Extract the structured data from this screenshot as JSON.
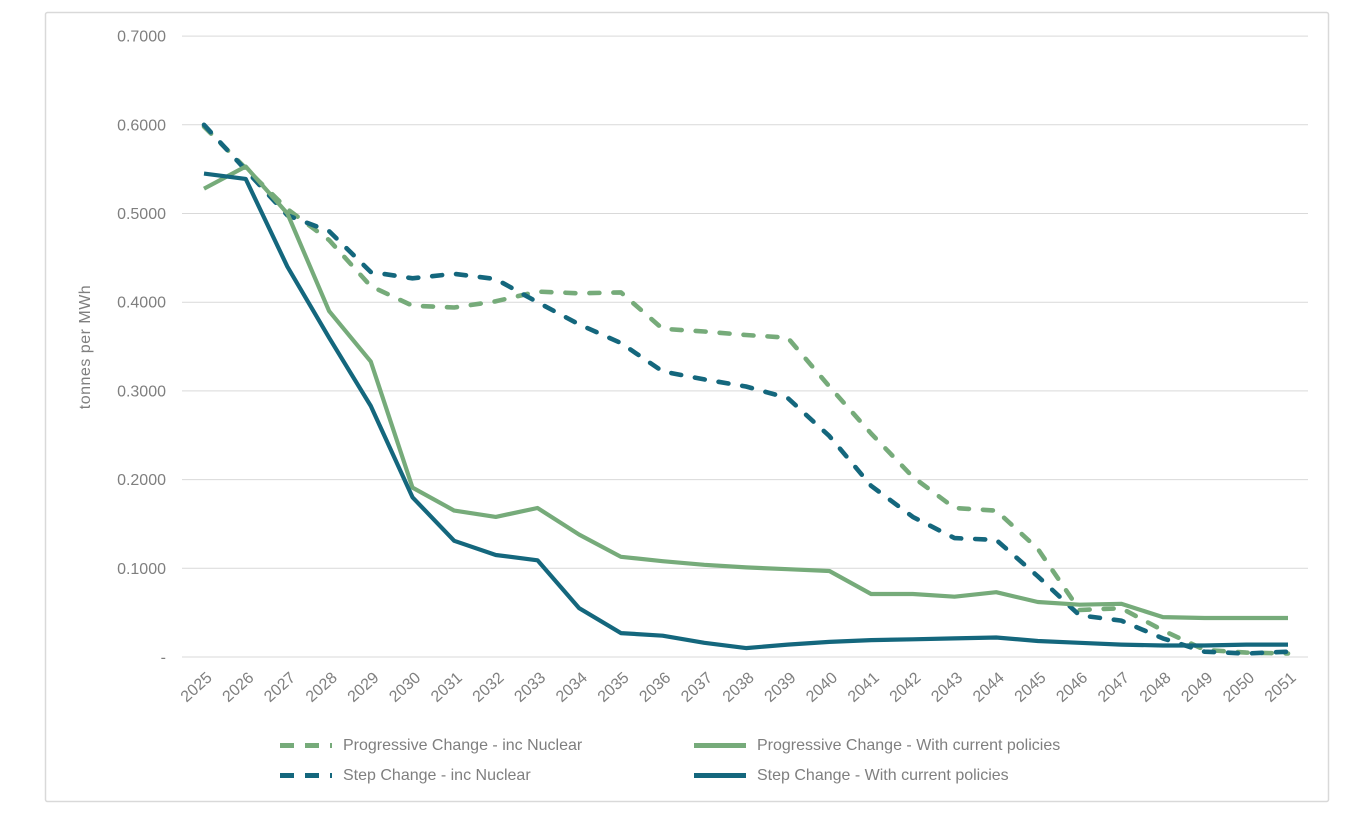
{
  "chart_data": {
    "type": "line",
    "title": "",
    "xlabel": "",
    "ylabel": "tonnes per MWh",
    "ylim": [
      0,
      0.7
    ],
    "grid": "horizontal",
    "legend_position": "bottom",
    "ytick_values": [
      0,
      0.1,
      0.2,
      0.3,
      0.4,
      0.5,
      0.6,
      0.7
    ],
    "ytick_labels": [
      "-",
      "0.1000",
      "0.2000",
      "0.3000",
      "0.4000",
      "0.5000",
      "0.6000",
      "0.7000"
    ],
    "x": [
      2025,
      2026,
      2027,
      2028,
      2029,
      2030,
      2031,
      2032,
      2033,
      2034,
      2035,
      2036,
      2037,
      2038,
      2039,
      2040,
      2041,
      2042,
      2043,
      2044,
      2045,
      2046,
      2047,
      2048,
      2049,
      2050,
      2051
    ],
    "series": [
      {
        "name": "Progressive Change - inc Nuclear",
        "color": "#76AB7A",
        "style": "dashed",
        "values": [
          0.598,
          0.551,
          0.505,
          0.47,
          0.418,
          0.396,
          0.394,
          0.401,
          0.412,
          0.41,
          0.411,
          0.37,
          0.367,
          0.363,
          0.36,
          0.305,
          0.252,
          0.203,
          0.168,
          0.165,
          0.122,
          0.053,
          0.055,
          0.03,
          0.008,
          0.005,
          0.004
        ]
      },
      {
        "name": "Progressive Change - With current policies",
        "color": "#76AB7A",
        "style": "solid",
        "values": [
          0.528,
          0.553,
          0.5,
          0.39,
          0.333,
          0.191,
          0.165,
          0.158,
          0.168,
          0.138,
          0.113,
          0.108,
          0.104,
          0.101,
          0.099,
          0.097,
          0.071,
          0.071,
          0.068,
          0.073,
          0.062,
          0.059,
          0.06,
          0.045,
          0.044,
          0.044,
          0.044
        ]
      },
      {
        "name": "Step Change - inc Nuclear",
        "color": "#14677D",
        "style": "dashed",
        "values": [
          0.6,
          0.549,
          0.498,
          0.48,
          0.434,
          0.427,
          0.432,
          0.426,
          0.4,
          0.375,
          0.354,
          0.322,
          0.313,
          0.305,
          0.292,
          0.249,
          0.193,
          0.158,
          0.134,
          0.132,
          0.091,
          0.047,
          0.041,
          0.021,
          0.006,
          0.004,
          0.006
        ]
      },
      {
        "name": "Step Change - With current policies",
        "color": "#14677D",
        "style": "solid",
        "values": [
          0.545,
          0.539,
          0.44,
          0.36,
          0.283,
          0.18,
          0.131,
          0.115,
          0.109,
          0.055,
          0.027,
          0.024,
          0.016,
          0.01,
          0.014,
          0.017,
          0.019,
          0.02,
          0.021,
          0.022,
          0.018,
          0.016,
          0.014,
          0.013,
          0.013,
          0.014,
          0.014
        ]
      }
    ]
  },
  "style": {
    "gridline_color": "#d9d9d9",
    "frame_border_color": "#d9d9d9",
    "tick_label_color": "#7f7f7f",
    "legend_text_color": "#7f7f7f",
    "background": "#ffffff"
  }
}
